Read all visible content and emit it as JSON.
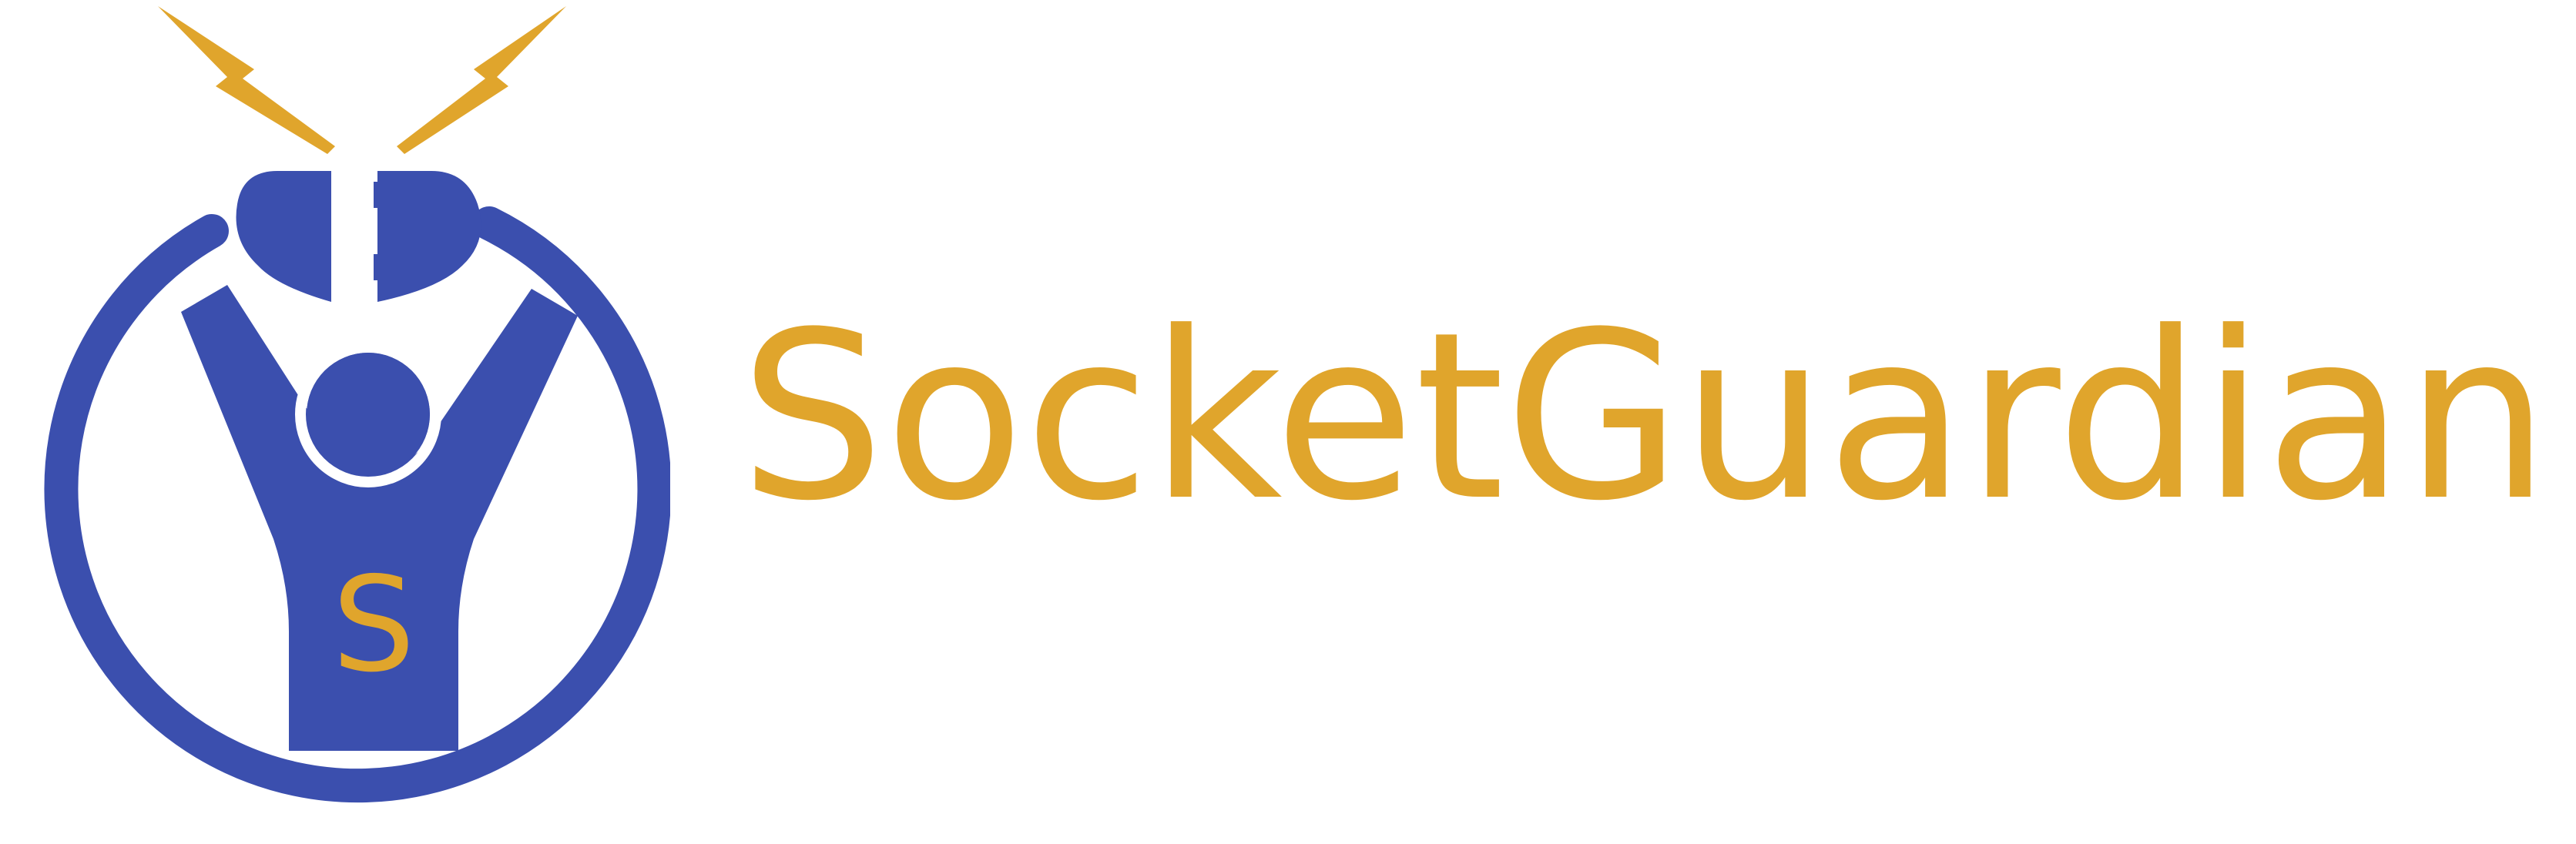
{
  "brand": {
    "name": "SocketGuardian",
    "emblem_letter": "S",
    "colors": {
      "primary_blue": "#3b4fae",
      "accent_gold": "#e0a52c"
    }
  },
  "icons": {
    "emblem": "socket-guardian-person-plug-emblem",
    "sparks": "lightning-bolt-icon"
  }
}
